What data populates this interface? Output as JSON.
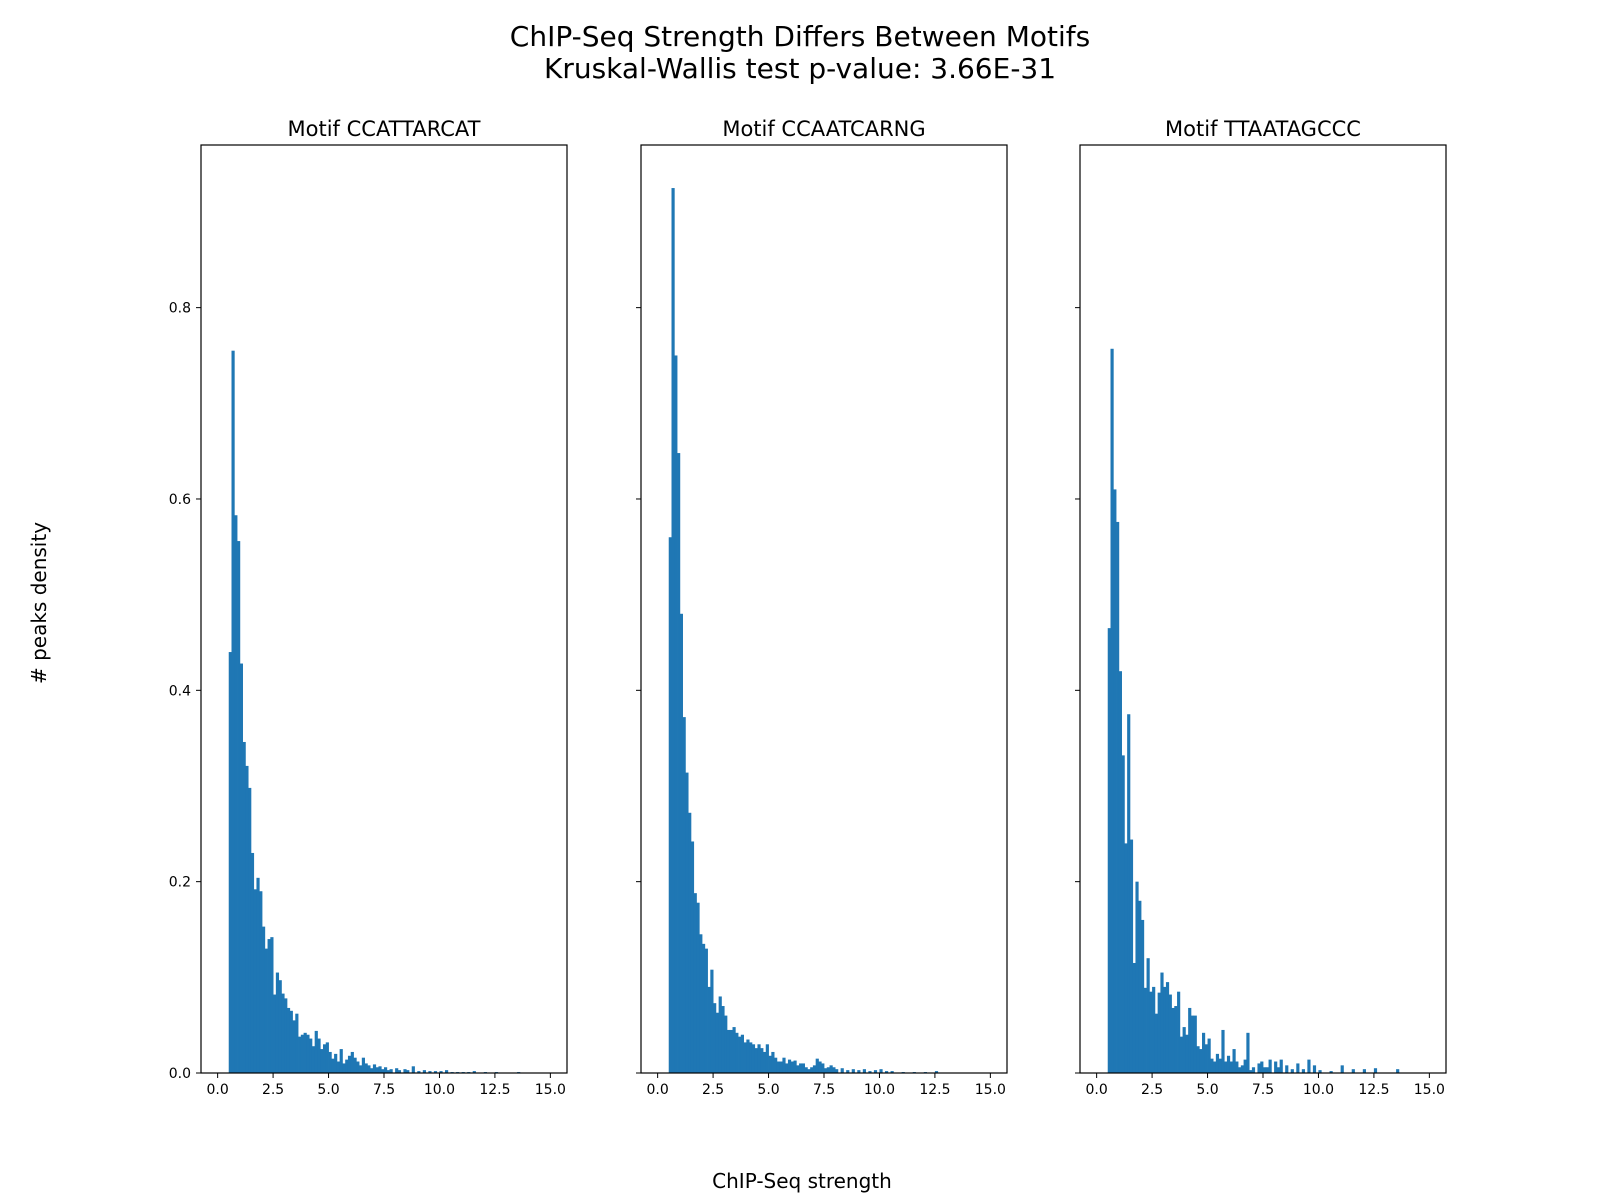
{
  "figure": {
    "title_line1": "ChIP-Seq Strength Differs Between Motifs",
    "title_line2": "Kruskal-Wallis test p-value: 3.66E-31",
    "xlabel": "ChIP-Seq strength",
    "ylabel": "# peaks density",
    "bar_color": "#1f77b4"
  },
  "chart_data": [
    {
      "type": "bar",
      "title": "Motif CCATTARCAT",
      "bin_width": 0.125,
      "xlim": [
        -0.75,
        15.75
      ],
      "ylim": [
        0,
        0.97
      ],
      "xticks": [
        0,
        2.5,
        5,
        7.5,
        10,
        12.5,
        15
      ],
      "xtick_labels": [
        "0.0",
        "2.5",
        "5.0",
        "7.5",
        "10.0",
        "12.5",
        "15.0"
      ],
      "yticks": [
        0,
        0.2,
        0.4,
        0.6,
        0.8
      ],
      "ytick_labels": [
        "0.0",
        "0.2",
        "0.4",
        "0.6",
        "0.8"
      ],
      "bins": [
        [
          0.5,
          0.44
        ],
        [
          0.625,
          0.755
        ],
        [
          0.75,
          0.583
        ],
        [
          0.875,
          0.556
        ],
        [
          1.0,
          0.428
        ],
        [
          1.125,
          0.346
        ],
        [
          1.25,
          0.321
        ],
        [
          1.375,
          0.298
        ],
        [
          1.5,
          0.23
        ],
        [
          1.625,
          0.192
        ],
        [
          1.75,
          0.204
        ],
        [
          1.875,
          0.19
        ],
        [
          2.0,
          0.153
        ],
        [
          2.125,
          0.13
        ],
        [
          2.25,
          0.14
        ],
        [
          2.375,
          0.142
        ],
        [
          2.5,
          0.082
        ],
        [
          2.625,
          0.105
        ],
        [
          2.75,
          0.097
        ],
        [
          2.875,
          0.083
        ],
        [
          3.0,
          0.078
        ],
        [
          3.125,
          0.068
        ],
        [
          3.25,
          0.065
        ],
        [
          3.375,
          0.055
        ],
        [
          3.5,
          0.062
        ],
        [
          3.625,
          0.038
        ],
        [
          3.75,
          0.04
        ],
        [
          3.875,
          0.042
        ],
        [
          4.0,
          0.04
        ],
        [
          4.125,
          0.036
        ],
        [
          4.25,
          0.028
        ],
        [
          4.375,
          0.044
        ],
        [
          4.5,
          0.036
        ],
        [
          4.625,
          0.025
        ],
        [
          4.75,
          0.03
        ],
        [
          4.875,
          0.032
        ],
        [
          5.0,
          0.022
        ],
        [
          5.125,
          0.015
        ],
        [
          5.25,
          0.02
        ],
        [
          5.375,
          0.012
        ],
        [
          5.5,
          0.025
        ],
        [
          5.625,
          0.01
        ],
        [
          5.75,
          0.014
        ],
        [
          5.875,
          0.018
        ],
        [
          6.0,
          0.022
        ],
        [
          6.125,
          0.016
        ],
        [
          6.25,
          0.012
        ],
        [
          6.375,
          0.008
        ],
        [
          6.5,
          0.016
        ],
        [
          6.625,
          0.01
        ],
        [
          6.75,
          0.008
        ],
        [
          6.875,
          0.005
        ],
        [
          7.0,
          0.009
        ],
        [
          7.125,
          0.006
        ],
        [
          7.25,
          0.007
        ],
        [
          7.375,
          0.004
        ],
        [
          7.5,
          0.006
        ],
        [
          7.625,
          0.003
        ],
        [
          7.75,
          0.004
        ],
        [
          8.0,
          0.005
        ],
        [
          8.125,
          0.003
        ],
        [
          8.375,
          0.004
        ],
        [
          8.5,
          0.003
        ],
        [
          8.75,
          0.007
        ],
        [
          9.0,
          0.002
        ],
        [
          9.25,
          0.003
        ],
        [
          9.5,
          0.002
        ],
        [
          9.75,
          0.002
        ],
        [
          10.0,
          0.002
        ],
        [
          10.25,
          0.003
        ],
        [
          10.5,
          0.001
        ],
        [
          10.75,
          0.001
        ],
        [
          11.0,
          0.001
        ],
        [
          11.25,
          0.001
        ],
        [
          11.5,
          0.002
        ],
        [
          12.0,
          0.001
        ],
        [
          12.5,
          0.001
        ],
        [
          13.5,
          0.001
        ]
      ]
    },
    {
      "type": "bar",
      "title": "Motif CCAATCARNG",
      "bin_width": 0.125,
      "xlim": [
        -0.75,
        15.75
      ],
      "ylim": [
        0,
        0.97
      ],
      "xticks": [
        0,
        2.5,
        5,
        7.5,
        10,
        12.5,
        15
      ],
      "xtick_labels": [
        "0.0",
        "2.5",
        "5.0",
        "7.5",
        "10.0",
        "12.5",
        "15.0"
      ],
      "yticks": [
        0,
        0.2,
        0.4,
        0.6,
        0.8
      ],
      "bins": [
        [
          0.5,
          0.56
        ],
        [
          0.625,
          0.925
        ],
        [
          0.75,
          0.75
        ],
        [
          0.875,
          0.648
        ],
        [
          1.0,
          0.48
        ],
        [
          1.125,
          0.372
        ],
        [
          1.25,
          0.314
        ],
        [
          1.375,
          0.272
        ],
        [
          1.5,
          0.242
        ],
        [
          1.625,
          0.188
        ],
        [
          1.75,
          0.178
        ],
        [
          1.875,
          0.145
        ],
        [
          2.0,
          0.135
        ],
        [
          2.125,
          0.13
        ],
        [
          2.25,
          0.09
        ],
        [
          2.375,
          0.108
        ],
        [
          2.5,
          0.073
        ],
        [
          2.625,
          0.063
        ],
        [
          2.75,
          0.08
        ],
        [
          2.875,
          0.07
        ],
        [
          3.0,
          0.06
        ],
        [
          3.125,
          0.045
        ],
        [
          3.25,
          0.045
        ],
        [
          3.375,
          0.048
        ],
        [
          3.5,
          0.042
        ],
        [
          3.625,
          0.038
        ],
        [
          3.75,
          0.04
        ],
        [
          3.875,
          0.032
        ],
        [
          4.0,
          0.035
        ],
        [
          4.125,
          0.032
        ],
        [
          4.25,
          0.03
        ],
        [
          4.375,
          0.026
        ],
        [
          4.5,
          0.03
        ],
        [
          4.625,
          0.026
        ],
        [
          4.75,
          0.022
        ],
        [
          4.875,
          0.03
        ],
        [
          5.0,
          0.018
        ],
        [
          5.125,
          0.022
        ],
        [
          5.25,
          0.016
        ],
        [
          5.375,
          0.012
        ],
        [
          5.5,
          0.012
        ],
        [
          5.625,
          0.016
        ],
        [
          5.75,
          0.01
        ],
        [
          5.875,
          0.014
        ],
        [
          6.0,
          0.012
        ],
        [
          6.125,
          0.013
        ],
        [
          6.25,
          0.008
        ],
        [
          6.375,
          0.01
        ],
        [
          6.5,
          0.01
        ],
        [
          6.625,
          0.006
        ],
        [
          6.75,
          0.004
        ],
        [
          6.875,
          0.006
        ],
        [
          7.0,
          0.008
        ],
        [
          7.125,
          0.015
        ],
        [
          7.25,
          0.012
        ],
        [
          7.375,
          0.01
        ],
        [
          7.5,
          0.005
        ],
        [
          7.625,
          0.006
        ],
        [
          7.75,
          0.008
        ],
        [
          7.875,
          0.006
        ],
        [
          8.0,
          0.004
        ],
        [
          8.25,
          0.005
        ],
        [
          8.5,
          0.003
        ],
        [
          8.75,
          0.004
        ],
        [
          9.0,
          0.003
        ],
        [
          9.25,
          0.004
        ],
        [
          9.5,
          0.002
        ],
        [
          9.75,
          0.003
        ],
        [
          10.0,
          0.004
        ],
        [
          10.25,
          0.002
        ],
        [
          10.5,
          0.002
        ],
        [
          11.0,
          0.001
        ],
        [
          11.5,
          0.001
        ],
        [
          12.0,
          0.001
        ],
        [
          12.5,
          0.002
        ]
      ]
    },
    {
      "type": "bar",
      "title": "Motif TTAATAGCCC",
      "bin_width": 0.125,
      "xlim": [
        -0.75,
        15.75
      ],
      "ylim": [
        0,
        0.97
      ],
      "xticks": [
        0,
        2.5,
        5,
        7.5,
        10,
        12.5,
        15
      ],
      "xtick_labels": [
        "0.0",
        "2.5",
        "5.0",
        "7.5",
        "10.0",
        "12.5",
        "15.0"
      ],
      "yticks": [
        0,
        0.2,
        0.4,
        0.6,
        0.8
      ],
      "bins": [
        [
          0.5,
          0.465
        ],
        [
          0.625,
          0.757
        ],
        [
          0.75,
          0.61
        ],
        [
          0.875,
          0.576
        ],
        [
          1.0,
          0.42
        ],
        [
          1.125,
          0.332
        ],
        [
          1.25,
          0.24
        ],
        [
          1.375,
          0.375
        ],
        [
          1.5,
          0.244
        ],
        [
          1.625,
          0.115
        ],
        [
          1.75,
          0.2
        ],
        [
          1.875,
          0.18
        ],
        [
          2.0,
          0.16
        ],
        [
          2.125,
          0.089
        ],
        [
          2.25,
          0.12
        ],
        [
          2.375,
          0.085
        ],
        [
          2.5,
          0.09
        ],
        [
          2.625,
          0.062
        ],
        [
          2.75,
          0.084
        ],
        [
          2.875,
          0.105
        ],
        [
          3.0,
          0.09
        ],
        [
          3.125,
          0.095
        ],
        [
          3.25,
          0.082
        ],
        [
          3.375,
          0.068
        ],
        [
          3.5,
          0.07
        ],
        [
          3.625,
          0.085
        ],
        [
          3.75,
          0.038
        ],
        [
          3.875,
          0.048
        ],
        [
          4.0,
          0.04
        ],
        [
          4.125,
          0.068
        ],
        [
          4.25,
          0.06
        ],
        [
          4.375,
          0.06
        ],
        [
          4.5,
          0.028
        ],
        [
          4.625,
          0.025
        ],
        [
          4.75,
          0.042
        ],
        [
          4.875,
          0.03
        ],
        [
          5.0,
          0.036
        ],
        [
          5.125,
          0.015
        ],
        [
          5.25,
          0.012
        ],
        [
          5.375,
          0.02
        ],
        [
          5.5,
          0.015
        ],
        [
          5.625,
          0.045
        ],
        [
          5.75,
          0.012
        ],
        [
          5.875,
          0.018
        ],
        [
          6.0,
          0.012
        ],
        [
          6.125,
          0.025
        ],
        [
          6.25,
          0.012
        ],
        [
          6.375,
          0.006
        ],
        [
          6.5,
          0.008
        ],
        [
          6.625,
          0.014
        ],
        [
          6.75,
          0.042
        ],
        [
          6.875,
          0.003
        ],
        [
          7.0,
          0.006
        ],
        [
          7.25,
          0.01
        ],
        [
          7.375,
          0.012
        ],
        [
          7.5,
          0.006
        ],
        [
          7.625,
          0.006
        ],
        [
          7.75,
          0.014
        ],
        [
          8.0,
          0.012
        ],
        [
          8.125,
          0.006
        ],
        [
          8.25,
          0.014
        ],
        [
          8.5,
          0.008
        ],
        [
          8.75,
          0.004
        ],
        [
          9.0,
          0.01
        ],
        [
          9.25,
          0.004
        ],
        [
          9.5,
          0.014
        ],
        [
          9.75,
          0.008
        ],
        [
          10.0,
          0.003
        ],
        [
          10.5,
          0.002
        ],
        [
          11.0,
          0.008
        ],
        [
          11.5,
          0.004
        ],
        [
          12.0,
          0.004
        ],
        [
          12.5,
          0.005
        ],
        [
          13.5,
          0.004
        ]
      ]
    }
  ]
}
